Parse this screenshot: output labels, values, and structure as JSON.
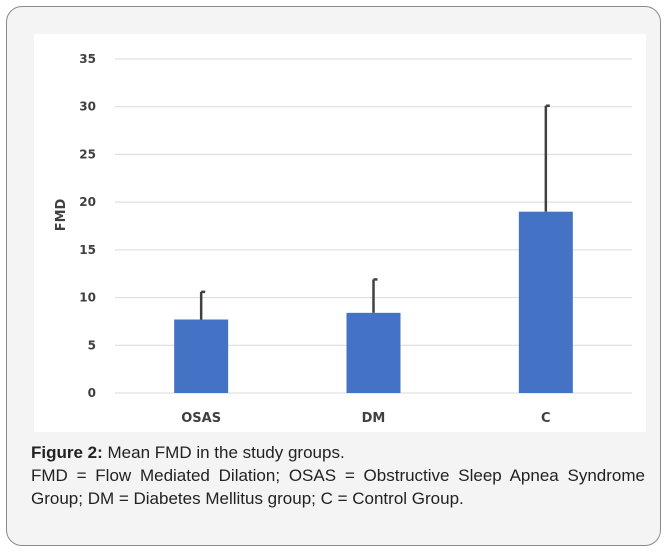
{
  "chart_data": {
    "type": "bar",
    "categories": [
      "OSAS",
      "DM",
      "C"
    ],
    "values": [
      7.7,
      8.4,
      19.0
    ],
    "error_bars": [
      2.9,
      3.5,
      11.1
    ],
    "ylabel": "FMD",
    "xlabel": "",
    "ylim": [
      0,
      35
    ],
    "yticks": [
      0,
      5,
      10,
      15,
      20,
      25,
      30,
      35
    ],
    "grid": true,
    "bar_color": "#4472c4",
    "error_bar_color": "#404040"
  },
  "caption": {
    "title": "Figure 2:",
    "title_rest": " Mean FMD in the study groups.",
    "note": "FMD = Flow Mediated Dilation; OSAS = Obstructive Sleep Apnea Syndrome Group; DM = Diabetes Mellitus group; C = Control Group."
  }
}
